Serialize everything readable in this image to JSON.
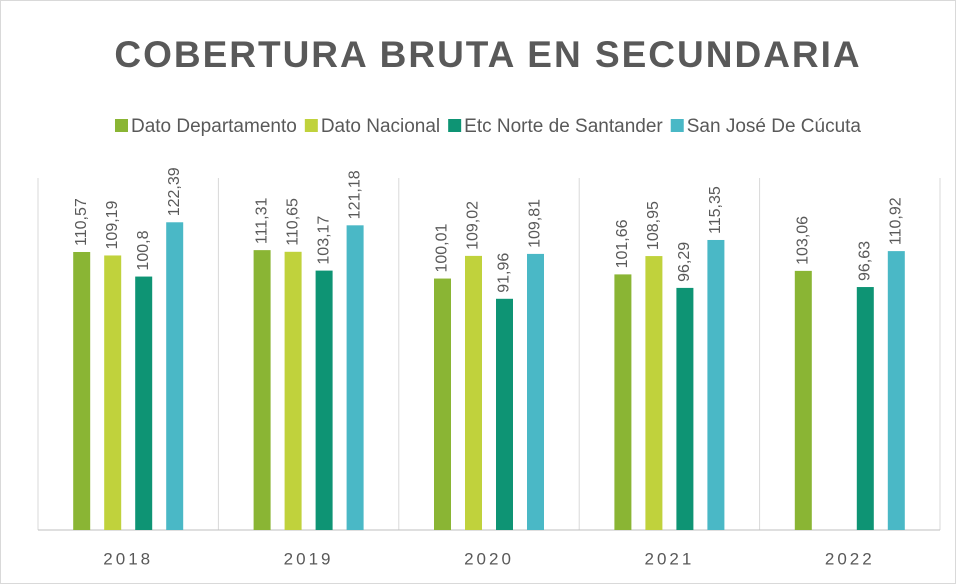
{
  "chart_data": {
    "type": "bar",
    "title": "COBERTURA BRUTA EN SECUNDARIA",
    "categories": [
      "2018",
      "2019",
      "2020",
      "2021",
      "2022"
    ],
    "series": [
      {
        "name": "Dato Departamento",
        "color": "#8ab534",
        "values": [
          110.57,
          111.31,
          100.01,
          101.66,
          103.06
        ],
        "value_labels": [
          "110,57",
          "111,31",
          "100,01",
          "101,66",
          "103,06"
        ]
      },
      {
        "name": "Dato Nacional",
        "color": "#c0d23c",
        "values": [
          109.19,
          110.65,
          109.02,
          108.95,
          null
        ],
        "value_labels": [
          "109,19",
          "110,65",
          "109,02",
          "108,95",
          null
        ]
      },
      {
        "name": "Etc Norte de Santander",
        "color": "#0e9474",
        "values": [
          100.8,
          103.17,
          91.96,
          96.29,
          96.63
        ],
        "value_labels": [
          "100,8",
          "103,17",
          "91,96",
          "96,29",
          "96,63"
        ]
      },
      {
        "name": "San José De Cúcuta",
        "color": "#4ab8c6",
        "values": [
          122.39,
          121.18,
          109.81,
          115.35,
          110.92
        ],
        "value_labels": [
          "122,39",
          "121,18",
          "109,81",
          "115,35",
          "110,92"
        ]
      }
    ],
    "ylim": [
      0,
      140
    ],
    "legend": "top"
  }
}
